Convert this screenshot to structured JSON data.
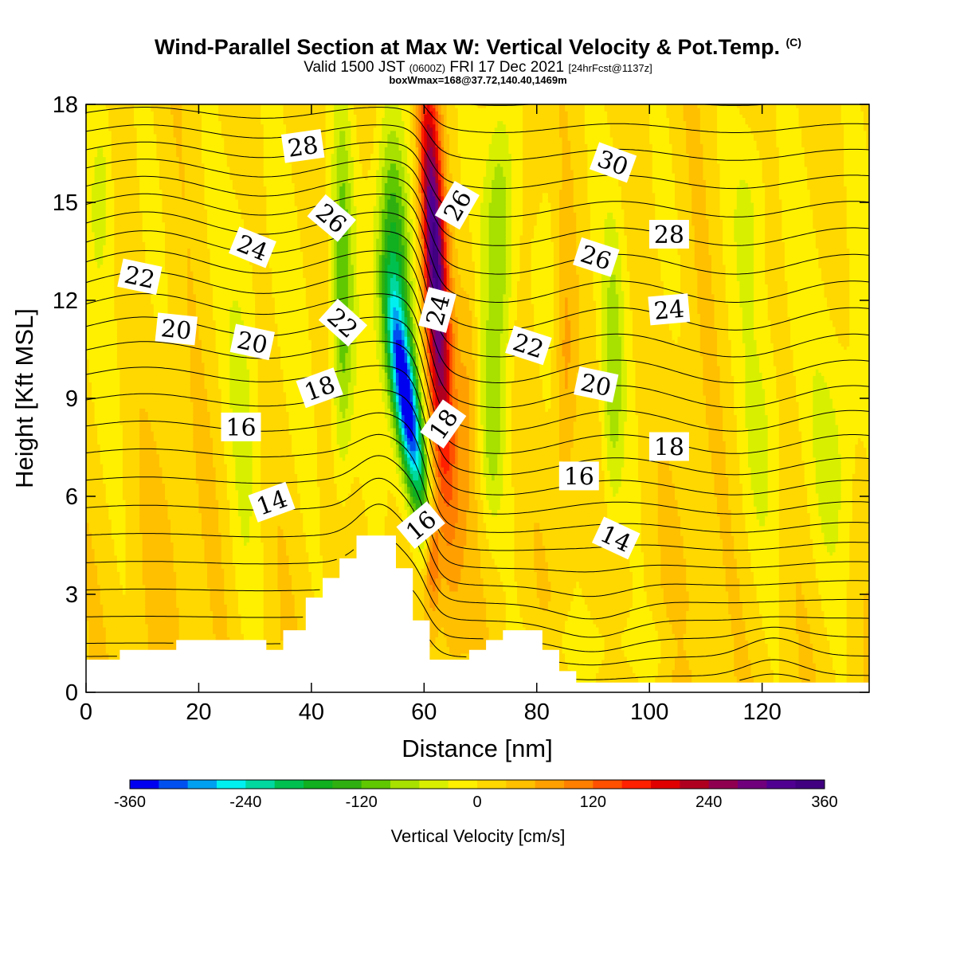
{
  "header": {
    "title": "Wind-Parallel Section at Max W: Vertical Velocity & Pot.Temp.",
    "title_mark": "(C)",
    "valid_a": "Valid 1500 JST",
    "valid_b": "(0600Z)",
    "valid_c": "FRI 17 Dec 2021",
    "valid_d": "[24hrFcst@1137z]",
    "box_info": "boxWmax=168@37.72,140.40,1469m"
  },
  "chart_data": {
    "type": "heatmap",
    "xlabel": "Distance [nm]",
    "ylabel": "Height [Kft MSL]",
    "xlim": [
      0,
      139
    ],
    "ylim": [
      0,
      18
    ],
    "x_ticks": [
      0,
      20,
      40,
      60,
      80,
      100,
      120
    ],
    "y_ticks": [
      0,
      3,
      6,
      9,
      12,
      15,
      18
    ],
    "colorbar": {
      "label": "Vertical Velocity [cm/s]",
      "ticks": [
        -360,
        -240,
        -120,
        0,
        120,
        240,
        360
      ],
      "levels": [
        -360,
        -330,
        -300,
        -270,
        -240,
        -210,
        -180,
        -150,
        -120,
        -90,
        -60,
        -30,
        0,
        30,
        60,
        90,
        120,
        150,
        180,
        210,
        240,
        270,
        300,
        330,
        360
      ],
      "colors": [
        "#0000f0",
        "#0050f0",
        "#00a0f0",
        "#00f0f0",
        "#00d8a0",
        "#00c050",
        "#10b020",
        "#30b010",
        "#60c800",
        "#a8e000",
        "#d8f000",
        "#fff000",
        "#ffd800",
        "#ffc000",
        "#ffa000",
        "#ff8000",
        "#ff5000",
        "#ff2000",
        "#e00000",
        "#b00020",
        "#900050",
        "#70007c",
        "#500090",
        "#400080"
      ]
    },
    "terrain_kft": [
      [
        0,
        1.0
      ],
      [
        6,
        1.0
      ],
      [
        6,
        1.3
      ],
      [
        16,
        1.3
      ],
      [
        16,
        1.6
      ],
      [
        32,
        1.6
      ],
      [
        32,
        1.3
      ],
      [
        35,
        1.3
      ],
      [
        35,
        1.9
      ],
      [
        39,
        1.9
      ],
      [
        39,
        2.9
      ],
      [
        42,
        2.9
      ],
      [
        42,
        3.5
      ],
      [
        45,
        3.5
      ],
      [
        45,
        4.1
      ],
      [
        48,
        4.1
      ],
      [
        48,
        4.8
      ],
      [
        55,
        4.8
      ],
      [
        55,
        3.8
      ],
      [
        58,
        3.8
      ],
      [
        58,
        2.2
      ],
      [
        61,
        2.2
      ],
      [
        61,
        1.0
      ],
      [
        68,
        1.0
      ],
      [
        68,
        1.3
      ],
      [
        71,
        1.3
      ],
      [
        71,
        1.6
      ],
      [
        74,
        1.6
      ],
      [
        74,
        1.9
      ],
      [
        81,
        1.9
      ],
      [
        81,
        1.3
      ],
      [
        84,
        1.3
      ],
      [
        84,
        0.65
      ],
      [
        87,
        0.65
      ],
      [
        87,
        0.3
      ],
      [
        139,
        0.3
      ]
    ],
    "theta_contour_labels": [
      {
        "text": "28",
        "x": 38.5,
        "y": 16.7,
        "angle": -8
      },
      {
        "text": "26",
        "x": 43.5,
        "y": 14.5,
        "angle": 40
      },
      {
        "text": "24",
        "x": 29.5,
        "y": 13.6,
        "angle": 22
      },
      {
        "text": "22",
        "x": 9.5,
        "y": 12.7,
        "angle": 12
      },
      {
        "text": "20",
        "x": 16,
        "y": 11.1,
        "angle": 6
      },
      {
        "text": "20",
        "x": 29.5,
        "y": 10.7,
        "angle": 12
      },
      {
        "text": "22",
        "x": 45.5,
        "y": 11.3,
        "angle": 42
      },
      {
        "text": "18",
        "x": 41.5,
        "y": 9.3,
        "angle": -20
      },
      {
        "text": "16",
        "x": 27.5,
        "y": 8.1,
        "angle": 0
      },
      {
        "text": "14",
        "x": 33,
        "y": 5.8,
        "angle": -20
      },
      {
        "text": "26",
        "x": 66,
        "y": 14.9,
        "angle": -60
      },
      {
        "text": "24",
        "x": 62.5,
        "y": 11.7,
        "angle": -75
      },
      {
        "text": "18",
        "x": 63.5,
        "y": 8.2,
        "angle": -55
      },
      {
        "text": "16",
        "x": 59.5,
        "y": 5.1,
        "angle": -40
      },
      {
        "text": "22",
        "x": 78.5,
        "y": 10.6,
        "angle": 18
      },
      {
        "text": "20",
        "x": 90.5,
        "y": 9.4,
        "angle": 12
      },
      {
        "text": "16",
        "x": 87.5,
        "y": 6.6,
        "angle": 0
      },
      {
        "text": "14",
        "x": 94,
        "y": 4.7,
        "angle": 25
      },
      {
        "text": "26",
        "x": 90.5,
        "y": 13.3,
        "angle": 18
      },
      {
        "text": "30",
        "x": 93.5,
        "y": 16.2,
        "angle": 20
      },
      {
        "text": "28",
        "x": 103.5,
        "y": 14.0,
        "angle": 0
      },
      {
        "text": "24",
        "x": 103.5,
        "y": 11.7,
        "angle": -5
      },
      {
        "text": "18",
        "x": 103.5,
        "y": 7.5,
        "angle": 0
      }
    ]
  }
}
